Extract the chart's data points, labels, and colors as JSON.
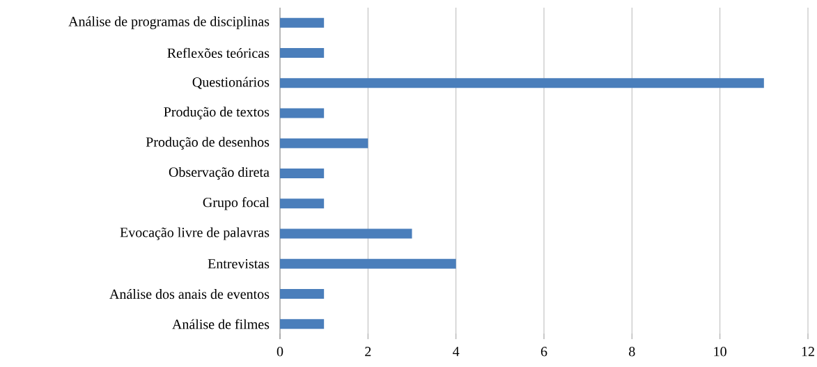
{
  "chart_data": {
    "type": "bar",
    "orientation": "horizontal",
    "categories": [
      "Análise de programas de disciplinas",
      "Reflexões teóricas",
      "Questionários",
      "Produção de textos",
      "Produção de desenhos",
      "Observação direta",
      "Grupo focal",
      "Evocação livre de palavras",
      "Entrevistas",
      "Análise dos anais de eventos",
      "Análise de filmes"
    ],
    "values": [
      1,
      1,
      11,
      1,
      2,
      1,
      1,
      3,
      4,
      1,
      1
    ],
    "color": "#4a7ebb",
    "xlim": [
      0,
      12
    ],
    "xticks": [
      0,
      2,
      4,
      6,
      8,
      10,
      12
    ],
    "grid": "x"
  }
}
